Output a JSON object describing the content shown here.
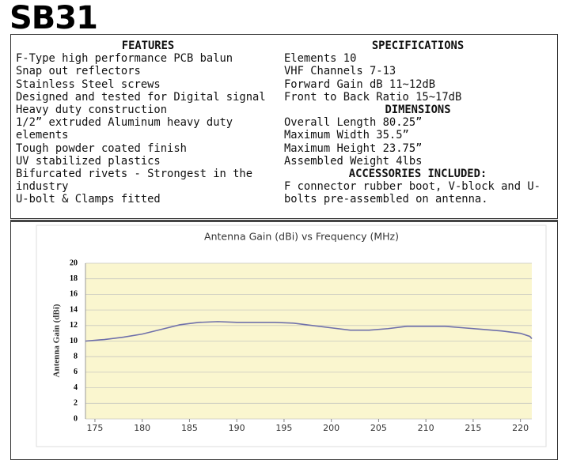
{
  "title": "SB31",
  "features": {
    "heading": "FEATURES",
    "items": [
      "F-Type high performance PCB balun",
      "Snap out reflectors",
      "Stainless Steel screws",
      "Designed and tested for Digital signal",
      "Heavy duty construction",
      "1/2” extruded Aluminum heavy duty elements",
      "Tough powder coated finish",
      "UV stabilized plastics",
      "Bifurcated rivets - Strongest in the industry",
      "U-bolt & Clamps fitted"
    ]
  },
  "specifications": {
    "heading": "SPECIFICATIONS",
    "items": [
      "Elements 10",
      "VHF Channels 7-13",
      "Forward Gain dB 11~12dB",
      "Front to Back Ratio 15~17dB"
    ]
  },
  "dimensions": {
    "heading": "DIMENSIONS",
    "items": [
      "Overall Length 80.25”",
      "Maximum Width 35.5”",
      "Maximum Height 23.75”",
      "Assembled Weight 4lbs"
    ]
  },
  "accessories": {
    "heading": "ACCESSORIES INCLUDED:",
    "text": "F connector rubber boot, V-block and U-bolts pre-assembled on antenna."
  },
  "chart_data": {
    "type": "line",
    "title": "Antenna Gain (dBi) vs Frequency (MHz)",
    "y_label": "Antenna Gain (dBi)",
    "x": [
      174,
      176,
      178,
      180,
      182,
      184,
      186,
      188,
      190,
      192,
      194,
      196,
      198,
      200,
      202,
      204,
      206,
      208,
      210,
      212,
      214,
      216,
      218,
      220,
      221,
      221.2
    ],
    "series": [
      {
        "name": "Antenna Gain",
        "color": "#6f70aa",
        "values": [
          10.0,
          10.2,
          10.5,
          10.9,
          11.5,
          12.1,
          12.4,
          12.5,
          12.4,
          12.4,
          12.4,
          12.3,
          12.0,
          11.7,
          11.4,
          11.4,
          11.6,
          11.9,
          11.9,
          11.9,
          11.7,
          11.5,
          11.3,
          11.0,
          10.6,
          10.3
        ]
      }
    ],
    "xlim": [
      174,
      221.2
    ],
    "xticks": [
      175,
      180,
      185,
      190,
      195,
      200,
      205,
      210,
      215,
      220
    ],
    "ylim": [
      0,
      20
    ],
    "yticks": [
      0,
      2,
      4,
      6,
      8,
      10,
      12,
      14,
      16,
      18,
      20
    ],
    "grid": true,
    "plot_background": "#faf6cf"
  }
}
